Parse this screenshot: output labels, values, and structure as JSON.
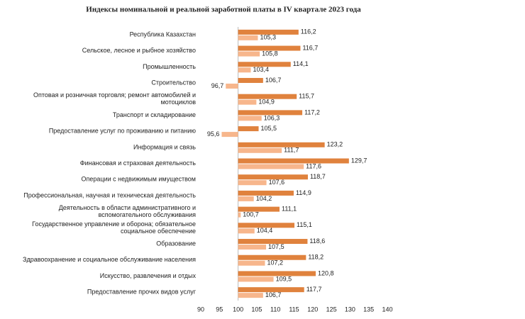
{
  "chart_data": {
    "type": "bar",
    "orientation": "horizontal",
    "title": "Индексы номинальной и реальной заработной платы в IV квартале 2023 года",
    "categories": [
      "Республика Казахстан",
      "Сельское, лесное и рыбное хозяйство",
      "Промышленность",
      "Строительство",
      "Оптовая и розничная торговля; ремонт автомобилей и\nмотоциклов",
      "Транспорт и складирование",
      "Предоставление услуг по проживанию и питанию",
      "Информация и связь",
      "Финансовая и страховая деятельность",
      "Операции с недвижимым имуществом",
      "Профессиональная, научная и техническая деятельность",
      "Деятельность в области административного и\nвспомогательного обслуживания",
      "Государственное управление и оборона; обязательное\nсоциальное обеспечение",
      "Образование",
      "Здравоохранение и социальное обслуживание населения",
      "Искусство, развлечения и отдых",
      "Предоставление прочих видов услуг"
    ],
    "series": [
      {
        "color": "#e0823d",
        "values": [
          116.2,
          116.7,
          114.1,
          106.7,
          115.7,
          117.2,
          105.5,
          123.2,
          129.7,
          118.7,
          114.9,
          111.1,
          115.1,
          118.6,
          118.2,
          120.8,
          117.7
        ],
        "value_labels": [
          "116,2",
          "116,7",
          "114,1",
          "106,7",
          "115,7",
          "117,2",
          "105,5",
          "123,2",
          "129,7",
          "118,7",
          "114,9",
          "111,1",
          "115,1",
          "118,6",
          "118,2",
          "120,8",
          "117,7"
        ]
      },
      {
        "color": "#f7b68c",
        "values": [
          105.3,
          105.8,
          103.4,
          96.7,
          104.9,
          106.3,
          95.6,
          111.7,
          117.6,
          107.6,
          104.2,
          100.7,
          104.4,
          107.5,
          107.2,
          109.5,
          106.7
        ],
        "value_labels": [
          "105,3",
          "105,8",
          "103,4",
          "96,7",
          "104,9",
          "106,3",
          "95,6",
          "111,7",
          "117,6",
          "107,6",
          "104,2",
          "100,7",
          "104,4",
          "107,5",
          "107,2",
          "109,5",
          "106,7"
        ]
      }
    ],
    "xlim": [
      90,
      140
    ],
    "xticks": [
      90,
      95,
      100,
      105,
      110,
      115,
      120,
      125,
      130,
      135,
      140
    ],
    "baseline": 100
  }
}
